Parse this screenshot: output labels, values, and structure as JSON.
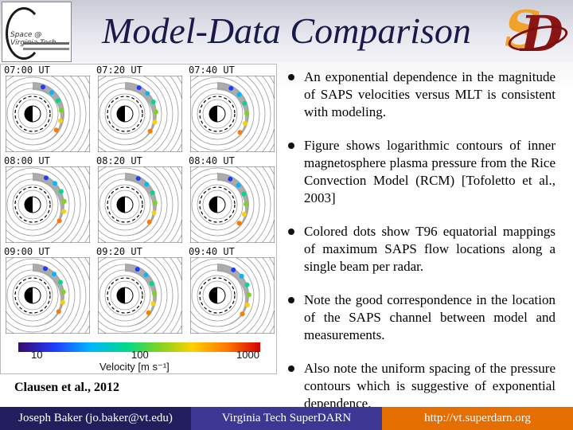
{
  "header": {
    "title": "Model-Data Comparison",
    "left_logo": "Space @ Virginia Tech",
    "right_logo": "SD"
  },
  "figure": {
    "panels": [
      {
        "label": "07:00 UT"
      },
      {
        "label": "07:20 UT"
      },
      {
        "label": "07:40 UT"
      },
      {
        "label": "08:00 UT"
      },
      {
        "label": "08:20 UT"
      },
      {
        "label": "08:40 UT"
      },
      {
        "label": "09:00 UT"
      },
      {
        "label": "09:20 UT"
      },
      {
        "label": "09:40 UT"
      }
    ],
    "colorbar": {
      "ticks": [
        "10",
        "100",
        "1000"
      ],
      "label": "Velocity [m s⁻¹]"
    },
    "credit": "Clausen et al., 2012"
  },
  "bullets": [
    "An exponential dependence in the magnitude of SAPS velocities versus MLT is consistent with modeling.",
    "Figure shows logarithmic contours of inner magnetosphere plasma pressure from the Rice Convection Model (RCM) [Tofoletto et al., 2003]",
    "Colored dots show T96 equatorial mappings of maximum SAPS flow locations along a single beam per radar.",
    "Note the good correspondence in the location of the SAPS channel between model and measurements.",
    "Also note the uniform spacing of the pressure contours which is suggestive of exponential dependence."
  ],
  "footer": {
    "author": "Joseph Baker (jo.baker@vt.edu)",
    "project": "Virginia Tech SuperDARN",
    "url": "http://vt.superdarn.org"
  },
  "colors": {
    "footer_dark": "#221e5e",
    "footer_mid": "#3b3793",
    "footer_orange": "#e46e00",
    "title": "#1a1a4a"
  }
}
